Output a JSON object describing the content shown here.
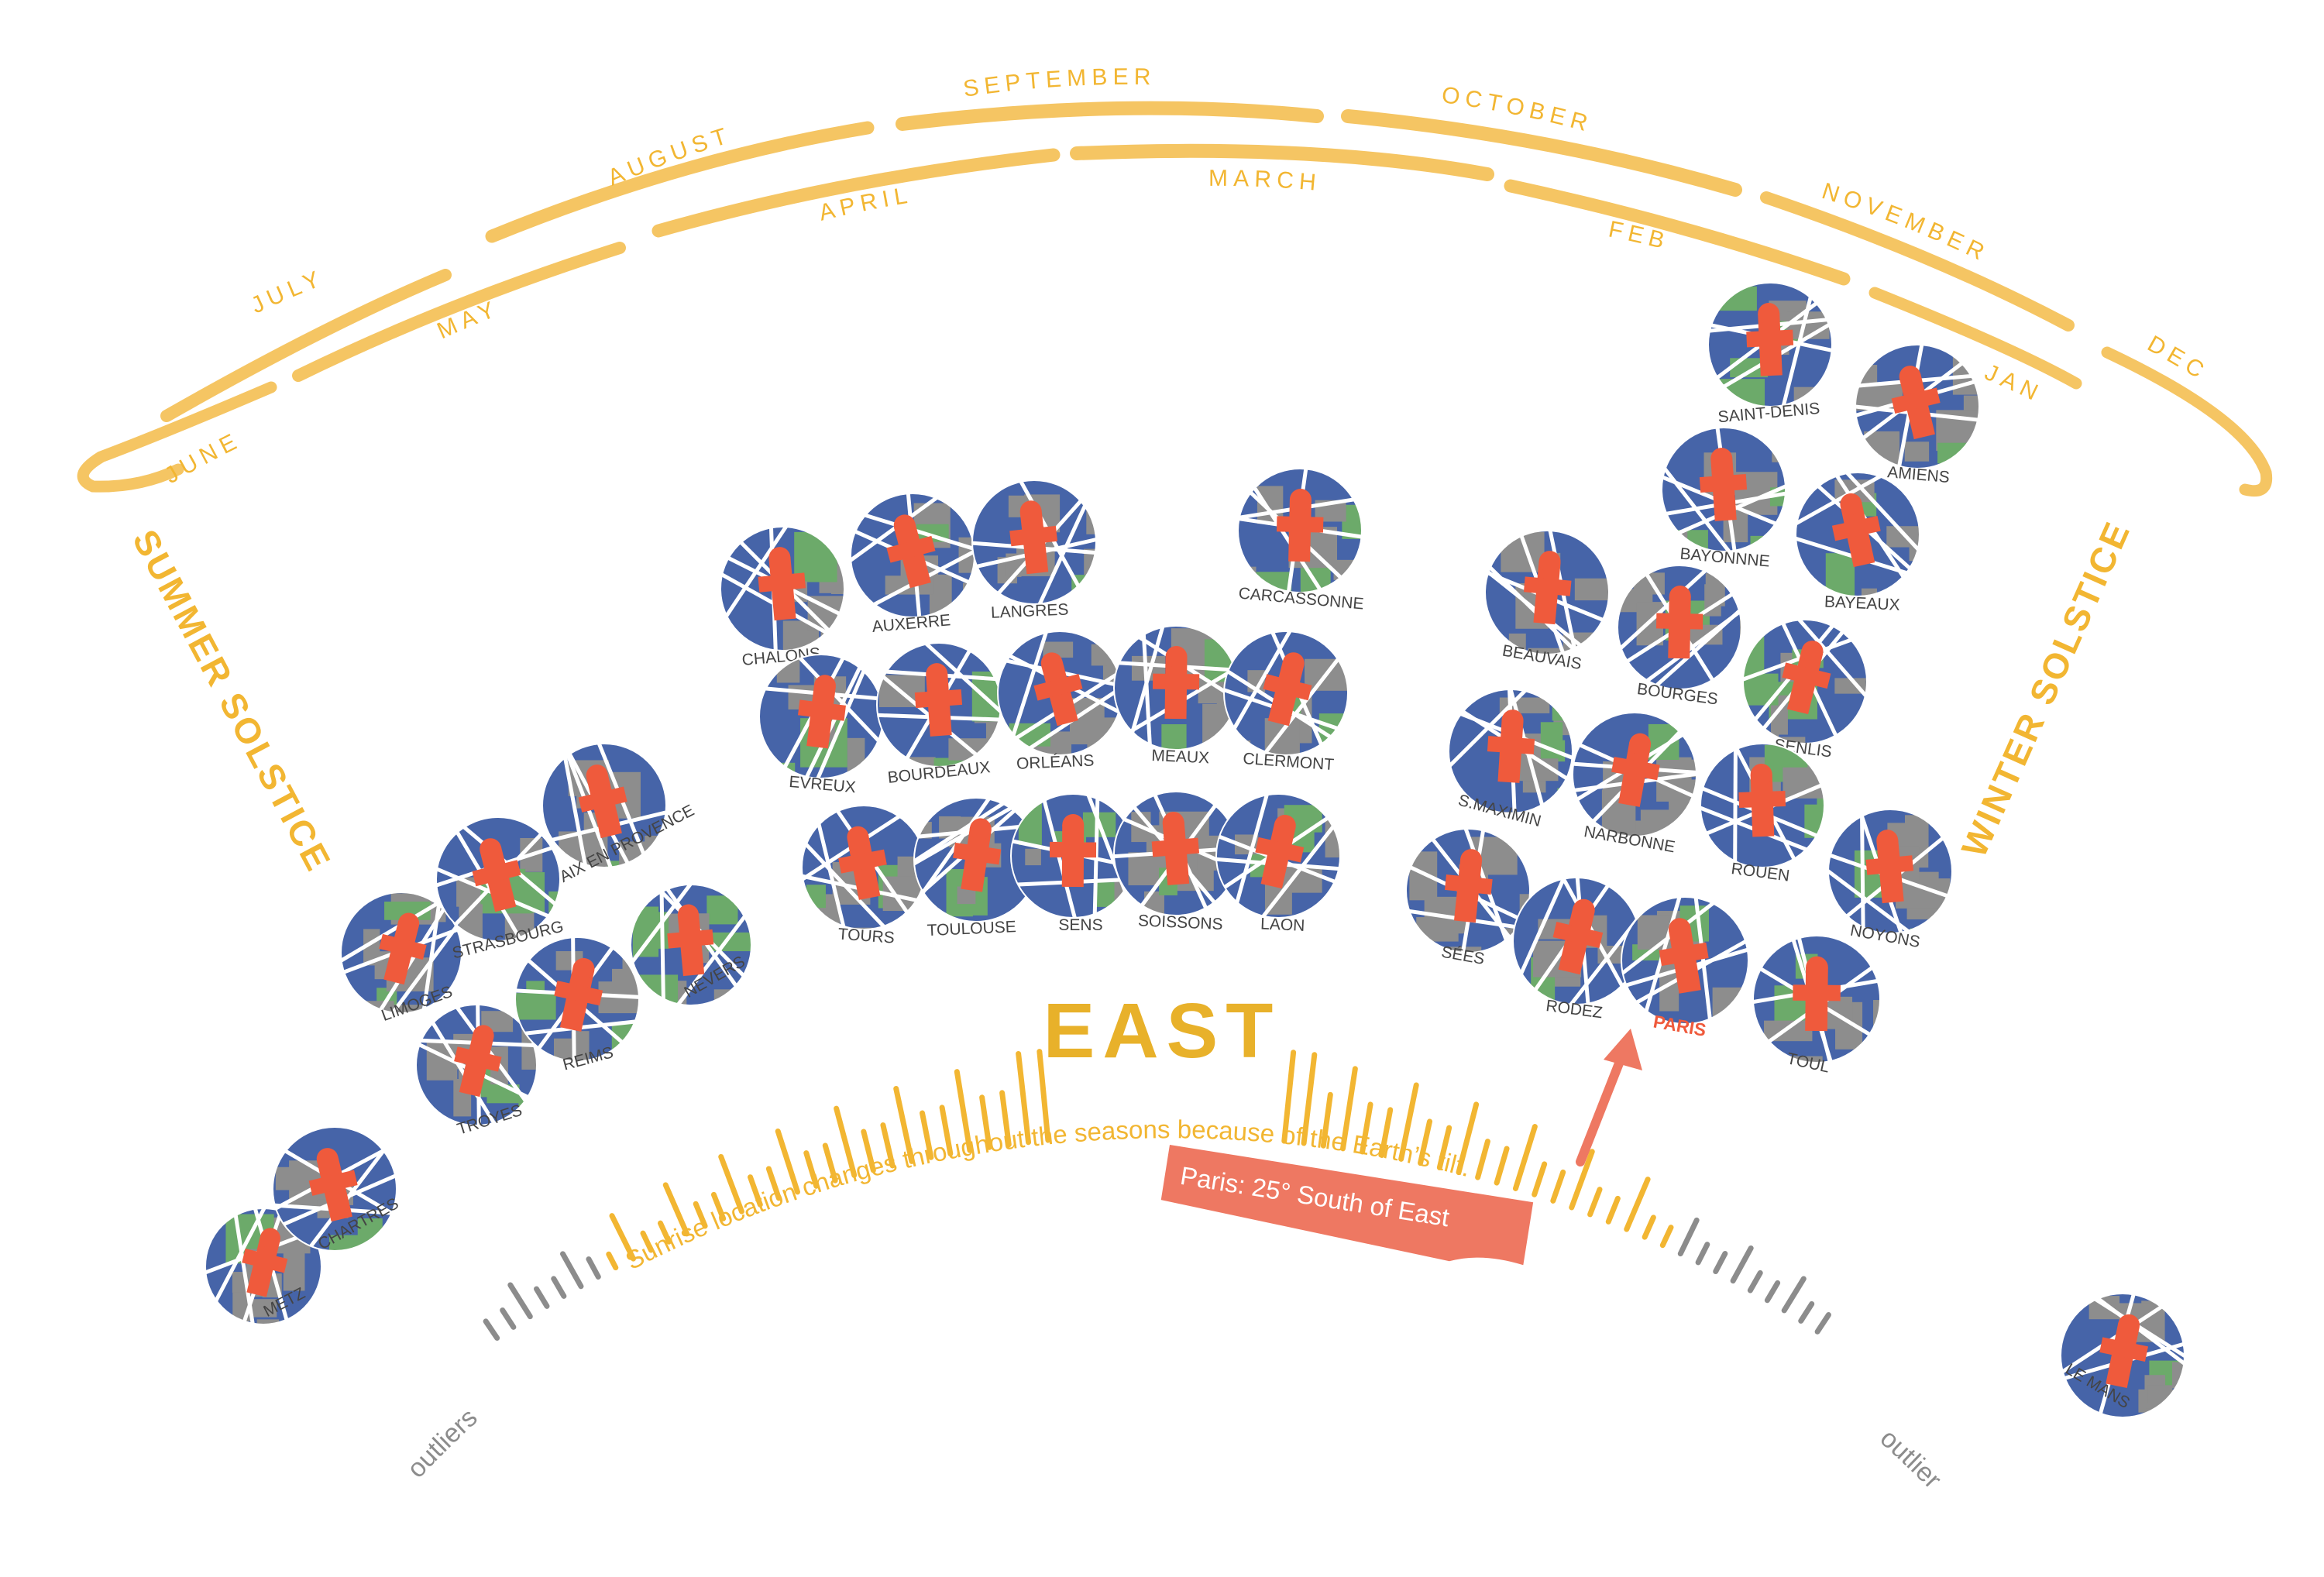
{
  "months_outer": [
    "JULY",
    "AUGUST",
    "SEPTEMBER",
    "OCTOBER",
    "NOVEMBER",
    "DEC"
  ],
  "months_inner": [
    "JUNE",
    "MAY",
    "APRIL",
    "MARCH",
    "FEB",
    "JAN"
  ],
  "summer_solstice": "SUMMER SOLSTICE",
  "winter_solstice": "WINTER SOLSTICE",
  "east_label": "EAST",
  "caption": "Sunrise location changes throughout the seasons because of the Earth’s tilt.",
  "paris_callout": "Paris: 25° South of East",
  "outliers_left": "outliers",
  "outlier_right": "outlier",
  "cities": [
    "METZ",
    "CHARTRES",
    "LIMOGES",
    "STRASBOURG",
    "AIX EN PROVENCE",
    "TROYES",
    "REIMS",
    "NEVERS",
    "CHALONS",
    "AUXERRE",
    "LANGRES",
    "CARCASSONNE",
    "EVREUX",
    "BOURDEAUX",
    "ORLÉANS",
    "MEAUX",
    "CLERMONT",
    "TOURS",
    "TOULOUSE",
    "SENS",
    "SOISSONS",
    "LAON",
    "SAINT-DENIS",
    "AMIENS",
    "BAYONNNE",
    "BAYEAUX",
    "BEAUVAIS",
    "BOURGES",
    "SENLIS",
    "S.MAXIMIN",
    "NARBONNE",
    "ROUEN",
    "NOYONS",
    "SÉES",
    "RODEZ",
    "PARIS",
    "TOUL",
    "LE MANS"
  ],
  "colors": {
    "arc_yellow": "#f5c563",
    "tick_yellow": "#f2b632",
    "tick_gray": "#8c8c8c",
    "accent_red": "#ef5a3c",
    "callout_red": "#ee7862",
    "map_blue": "#4664a8",
    "map_gray": "#8d8d8d",
    "map_green": "#6caa6a"
  }
}
